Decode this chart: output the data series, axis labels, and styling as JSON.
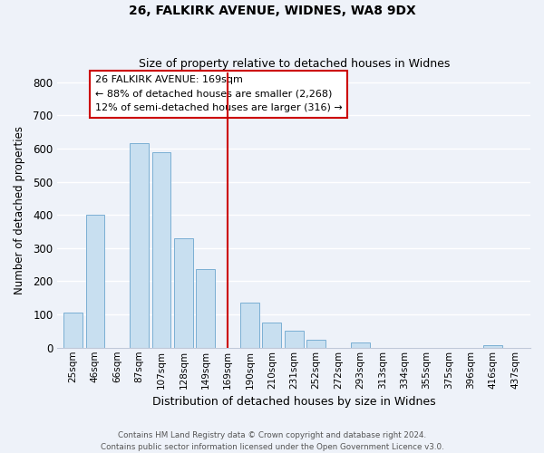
{
  "title1": "26, FALKIRK AVENUE, WIDNES, WA8 9DX",
  "title2": "Size of property relative to detached houses in Widnes",
  "xlabel": "Distribution of detached houses by size in Widnes",
  "ylabel": "Number of detached properties",
  "bar_labels": [
    "25sqm",
    "46sqm",
    "66sqm",
    "87sqm",
    "107sqm",
    "128sqm",
    "149sqm",
    "169sqm",
    "190sqm",
    "210sqm",
    "231sqm",
    "252sqm",
    "272sqm",
    "293sqm",
    "313sqm",
    "334sqm",
    "355sqm",
    "375sqm",
    "396sqm",
    "416sqm",
    "437sqm"
  ],
  "bar_values": [
    105,
    400,
    0,
    615,
    590,
    330,
    238,
    0,
    135,
    75,
    50,
    25,
    0,
    15,
    0,
    0,
    0,
    0,
    0,
    8,
    0
  ],
  "bar_color": "#c8dff0",
  "bar_edge_color": "#7bafd4",
  "vline_x_index": 7,
  "vline_color": "#cc0000",
  "annotation_title": "26 FALKIRK AVENUE: 169sqm",
  "annotation_line1": "← 88% of detached houses are smaller (2,268)",
  "annotation_line2": "12% of semi-detached houses are larger (316) →",
  "annotation_box_facecolor": "#ffffff",
  "annotation_box_edgecolor": "#cc0000",
  "ylim": [
    0,
    830
  ],
  "yticks": [
    0,
    100,
    200,
    300,
    400,
    500,
    600,
    700,
    800
  ],
  "footer1": "Contains HM Land Registry data © Crown copyright and database right 2024.",
  "footer2": "Contains public sector information licensed under the Open Government Licence v3.0.",
  "background_color": "#eef2f9",
  "grid_color": "#ffffff",
  "spine_color": "#c0c8d8"
}
